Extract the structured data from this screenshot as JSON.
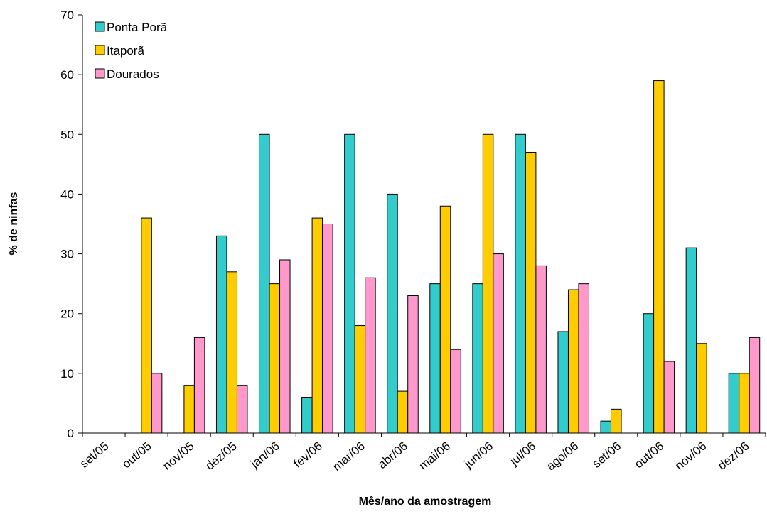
{
  "chart_data": {
    "type": "bar",
    "title": "",
    "xlabel": "Mês/ano da amostragem",
    "ylabel": "% de ninfas",
    "ylim": [
      0,
      70
    ],
    "yticks": [
      0,
      10,
      20,
      30,
      40,
      50,
      60,
      70
    ],
    "grid": false,
    "legend_position": "top-left",
    "categories": [
      "set/05",
      "out/05",
      "nov/05",
      "dez/05",
      "jan/06",
      "fev/06",
      "mar/06",
      "abr/06",
      "mai/06",
      "jun/06",
      "jul/06",
      "ago/06",
      "set/06",
      "out/06",
      "nov/06",
      "dez/06"
    ],
    "series": [
      {
        "name": "Ponta Porã",
        "color": "#33CCCC",
        "values": [
          0,
          0,
          0,
          33,
          50,
          6,
          50,
          40,
          25,
          25,
          50,
          17,
          2,
          20,
          31,
          10
        ]
      },
      {
        "name": "Itaporã",
        "color": "#FFCC00",
        "values": [
          0,
          36,
          8,
          27,
          25,
          36,
          18,
          7,
          38,
          50,
          47,
          24,
          4,
          59,
          15,
          10
        ]
      },
      {
        "name": "Dourados",
        "color": "#FF99CC",
        "values": [
          0,
          10,
          16,
          8,
          29,
          35,
          26,
          23,
          14,
          30,
          28,
          25,
          0,
          12,
          0,
          16
        ]
      }
    ]
  }
}
